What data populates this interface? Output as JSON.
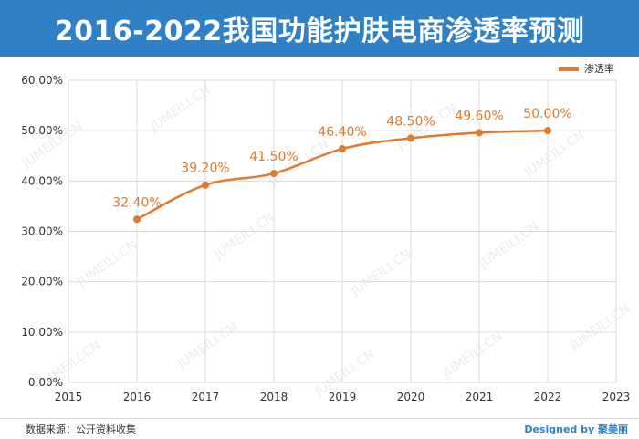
{
  "header": {
    "title": "2016-2022我国功能护肤电商渗透率预测"
  },
  "footer": {
    "source": "数据来源：公开资料收集",
    "designed_by": "Designed by 聚美丽"
  },
  "watermark": "JUMEILI.CN",
  "colors": {
    "header_bg": "#2f80c4",
    "series": "#e07a2d",
    "grid": "#d9d9d9"
  },
  "chart_data": {
    "type": "line",
    "x": [
      2016,
      2017,
      2018,
      2019,
      2020,
      2021,
      2022
    ],
    "series": [
      {
        "name": "渗透率",
        "values": [
          32.4,
          39.2,
          41.5,
          46.4,
          48.5,
          49.6,
          50.0
        ],
        "labels": [
          "32.40%",
          "39.20%",
          "41.50%",
          "46.40%",
          "48.50%",
          "49.60%",
          "50.00%"
        ]
      }
    ],
    "xlim": [
      2015,
      2023
    ],
    "xticks": [
      "2015",
      "2016",
      "2017",
      "2018",
      "2019",
      "2020",
      "2021",
      "2022",
      "2023"
    ],
    "ylim": [
      0,
      60
    ],
    "yticks": [
      "0.00%",
      "10.00%",
      "20.00%",
      "30.00%",
      "40.00%",
      "50.00%",
      "60.00%"
    ],
    "grid": true,
    "legend": "top-right",
    "smooth": true
  }
}
